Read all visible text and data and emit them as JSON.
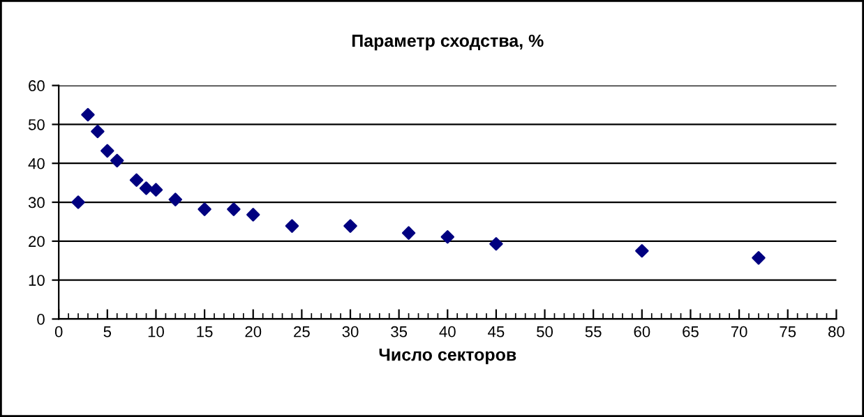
{
  "chart_data": {
    "type": "scatter",
    "title": "Параметр сходства, %",
    "xlabel": "Число секторов",
    "x": [
      2,
      3,
      4,
      5,
      6,
      8,
      9,
      10,
      12,
      15,
      18,
      20,
      24,
      30,
      36,
      40,
      45,
      60,
      72
    ],
    "series": [
      {
        "color": "#000080",
        "values": [
          30.0,
          52.5,
          48.2,
          43.2,
          40.7,
          35.7,
          33.6,
          33.2,
          30.7,
          28.2,
          28.2,
          26.8,
          23.9,
          23.9,
          22.1,
          21.1,
          19.3,
          17.5,
          15.7
        ]
      }
    ],
    "xlim": [
      0,
      80
    ],
    "xticks": [
      0,
      5,
      10,
      15,
      20,
      25,
      30,
      35,
      40,
      45,
      50,
      55,
      60,
      65,
      70,
      75,
      80
    ],
    "ylim": [
      0,
      60
    ],
    "yticks": [
      0,
      10,
      20,
      30,
      40,
      50,
      60
    ],
    "grid": "y",
    "marker": "diamond",
    "legend": false
  }
}
